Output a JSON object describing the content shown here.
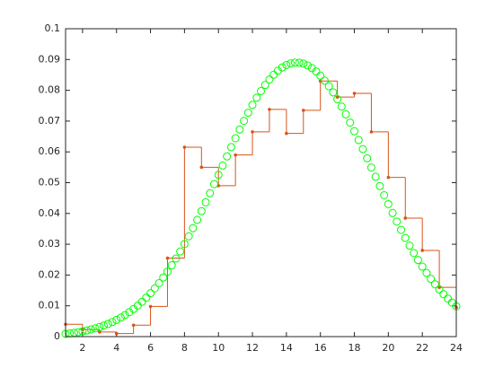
{
  "chart_data": {
    "type": "line",
    "xlim": [
      1,
      24
    ],
    "ylim": [
      0,
      0.1
    ],
    "xticks": [
      2,
      4,
      6,
      8,
      10,
      12,
      14,
      16,
      18,
      20,
      22,
      24
    ],
    "yticks": [
      0,
      0.01,
      0.02,
      0.03,
      0.04,
      0.05,
      0.06,
      0.07,
      0.08,
      0.09,
      0.1
    ],
    "series": [
      {
        "style": "stairs",
        "color": "#d95319",
        "x": [
          1,
          2,
          3,
          4,
          5,
          6,
          7,
          8,
          9,
          10,
          11,
          12,
          13,
          14,
          15,
          16,
          17,
          18,
          19,
          20,
          21,
          22,
          23,
          24
        ],
        "values": [
          0.004,
          0.0023,
          0.0015,
          0.001,
          0.0037,
          0.0098,
          0.0255,
          0.0615,
          0.055,
          0.049,
          0.059,
          0.0665,
          0.0738,
          0.066,
          0.0735,
          0.083,
          0.0778,
          0.079,
          0.0665,
          0.0517,
          0.0385,
          0.028,
          0.016,
          0.0095
        ]
      },
      {
        "style": "circles",
        "color": "#00ff00",
        "x": [
          1,
          1.25,
          1.5,
          1.75,
          2,
          2.25,
          2.5,
          2.75,
          3,
          3.25,
          3.5,
          3.75,
          4,
          4.25,
          4.5,
          4.75,
          5,
          5.25,
          5.5,
          5.75,
          6,
          6.25,
          6.5,
          6.75,
          7,
          7.25,
          7.5,
          7.75,
          8,
          8.25,
          8.5,
          8.75,
          9,
          9.25,
          9.5,
          9.75,
          10,
          10.25,
          10.5,
          10.75,
          11,
          11.25,
          11.5,
          11.75,
          12,
          12.25,
          12.5,
          12.75,
          13,
          13.25,
          13.5,
          13.75,
          14,
          14.25,
          14.5,
          14.75,
          15,
          15.25,
          15.5,
          15.75,
          16,
          16.25,
          16.5,
          16.75,
          17,
          17.25,
          17.5,
          17.75,
          18,
          18.25,
          18.5,
          18.75,
          19,
          19.25,
          19.5,
          19.75,
          20,
          20.25,
          20.5,
          20.75,
          21,
          21.25,
          21.5,
          21.75,
          22,
          22.25,
          22.5,
          22.75,
          23,
          23.25,
          23.5,
          23.75,
          24
        ],
        "values": [
          0.00089,
          0.00105,
          0.00124,
          0.00145,
          0.00171,
          0.00199,
          0.00232,
          0.00269,
          0.00312,
          0.00359,
          0.00413,
          0.00474,
          0.00542,
          0.00617,
          0.00701,
          0.00794,
          0.00896,
          0.01008,
          0.01131,
          0.01265,
          0.01409,
          0.01567,
          0.01735,
          0.01918,
          0.02111,
          0.02317,
          0.02535,
          0.02765,
          0.03007,
          0.03258,
          0.03522,
          0.03793,
          0.04076,
          0.04363,
          0.04656,
          0.04953,
          0.05254,
          0.05557,
          0.05854,
          0.06154,
          0.06443,
          0.06726,
          0.07008,
          0.07272,
          0.07524,
          0.07757,
          0.07974,
          0.08173,
          0.0835,
          0.08505,
          0.08636,
          0.08741,
          0.0882,
          0.08873,
          0.089,
          0.08895,
          0.08865,
          0.08807,
          0.08722,
          0.08612,
          0.08476,
          0.08316,
          0.08135,
          0.07932,
          0.0771,
          0.07471,
          0.07218,
          0.0695,
          0.06672,
          0.06384,
          0.06091,
          0.05792,
          0.05492,
          0.05191,
          0.04889,
          0.04592,
          0.04301,
          0.04015,
          0.03736,
          0.03466,
          0.03205,
          0.02955,
          0.02716,
          0.02488,
          0.02273,
          0.02069,
          0.01878,
          0.01699,
          0.01533,
          0.01378,
          0.01236,
          0.01105,
          0.00985
        ]
      }
    ]
  }
}
